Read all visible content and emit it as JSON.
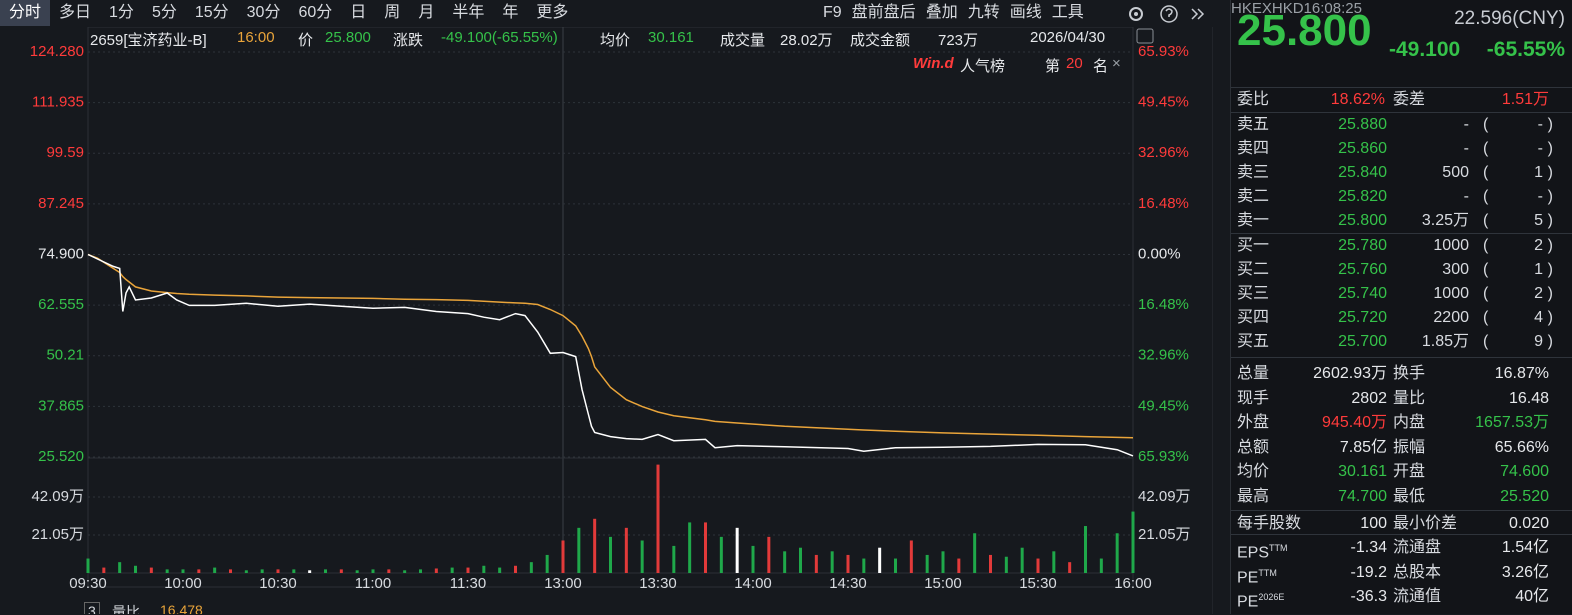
{
  "toolbar": {
    "tabs": [
      "分时",
      "多日",
      "1分",
      "5分",
      "15分",
      "30分",
      "60分",
      "日",
      "周",
      "月",
      "半年",
      "年",
      "更多"
    ],
    "tools": [
      "F9",
      "盘前盘后",
      "叠加",
      "九转",
      "画线",
      "工具"
    ]
  },
  "info": [
    "2659[宝济药业-B]",
    "16:00",
    "价",
    "25.800",
    "涨跌",
    "-49.100(-65.55%)",
    "均价",
    "30.161",
    "成交量",
    "28.02万",
    "成交金额",
    "723万",
    "2026/04/30"
  ],
  "ranking": {
    "brand": "Win.d",
    "name": "人气榜",
    "prefix": "第",
    "rank": "20",
    "suffix": "名",
    "close": "×"
  },
  "chart_data": {
    "type": "line",
    "xlim": [
      0,
      330
    ],
    "xticks": [
      {
        "value": 0,
        "label": "09:30"
      },
      {
        "value": 30,
        "label": "10:00"
      },
      {
        "value": 60,
        "label": "10:30"
      },
      {
        "value": 90,
        "label": "11:00"
      },
      {
        "value": 120,
        "label": "11:30"
      },
      {
        "value": 150,
        "label": "13:00"
      },
      {
        "value": 180,
        "label": "13:30"
      },
      {
        "value": 210,
        "label": "14:00"
      },
      {
        "value": 240,
        "label": "14:30"
      },
      {
        "value": 270,
        "label": "15:00"
      },
      {
        "value": 300,
        "label": "15:30"
      },
      {
        "value": 330,
        "label": "16:00"
      }
    ],
    "ylim": [
      25.52,
      124.28
    ],
    "yticks": [
      {
        "value": 25.52,
        "label": "25.520"
      },
      37.865,
      50.21,
      62.555,
      {
        "value": 74.9,
        "label": "74.900"
      },
      87.245,
      99.59,
      111.935,
      {
        "value": 124.28,
        "label": "124.280"
      }
    ],
    "y2lim": [
      -65.93,
      65.93
    ],
    "y2ticks": [
      {
        "value": -65.93,
        "label": "65.93%"
      },
      {
        "value": -49.45,
        "label": "49.45%"
      },
      {
        "value": -32.96,
        "label": "32.96%"
      },
      {
        "value": -16.48,
        "label": "16.48%"
      },
      {
        "value": 0,
        "label": "0.00%"
      },
      {
        "value": 16.48,
        "label": "16.48%"
      },
      {
        "value": 32.96,
        "label": "32.96%"
      },
      {
        "value": 49.45,
        "label": "49.45%"
      },
      {
        "value": 65.93,
        "label": "65.93%"
      }
    ],
    "grid": true,
    "tick_colors": {
      "up": "#ff3b3b",
      "flat": "#e6e8eb",
      "down": "#35c24a"
    },
    "x": [
      0,
      3,
      8,
      10,
      11,
      12,
      13,
      15,
      20,
      25,
      28,
      32,
      40,
      50,
      60,
      70,
      80,
      90,
      100,
      110,
      120,
      125,
      130,
      135,
      138,
      142,
      146,
      150,
      154,
      156,
      158,
      159,
      160,
      165,
      170,
      175,
      180,
      185,
      195,
      198,
      205,
      220,
      240,
      245,
      255,
      270,
      285,
      300,
      315,
      325,
      330
    ],
    "series": [
      {
        "color": "#ffffff",
        "values": [
          74.9,
          73.8,
          72.0,
          71.5,
          61.0,
          65.5,
          67.0,
          63.8,
          64.3,
          65.5,
          63.8,
          62.5,
          62.5,
          63.0,
          62.3,
          62.8,
          62.3,
          61.8,
          62.0,
          61.0,
          60.5,
          59.6,
          59.0,
          60.5,
          60.0,
          56.0,
          50.8,
          51.0,
          50.0,
          42.0,
          36.0,
          33.0,
          31.5,
          30.5,
          30.0,
          29.8,
          31.0,
          29.5,
          29.8,
          27.8,
          28.3,
          28.0,
          27.6,
          26.9,
          27.8,
          27.9,
          28.1,
          28.6,
          28.5,
          27.3,
          25.8
        ]
      },
      {
        "color": "#e9a43a",
        "values": [
          74.9,
          74.0,
          71.5,
          70.5,
          69.5,
          68.8,
          68.2,
          67.0,
          66.0,
          65.6,
          65.4,
          65.2,
          65.0,
          64.8,
          64.5,
          64.4,
          64.3,
          64.2,
          64.0,
          63.9,
          63.7,
          63.5,
          63.3,
          63.1,
          63.0,
          62.7,
          61.5,
          60.0,
          57.5,
          55.0,
          52.0,
          50.0,
          47.5,
          42.5,
          39.5,
          37.8,
          36.5,
          35.6,
          34.6,
          34.2,
          33.8,
          33.0,
          32.3,
          32.1,
          31.8,
          31.4,
          31.1,
          30.8,
          30.5,
          30.3,
          30.2
        ]
      }
    ],
    "volume": {
      "ylim": [
        0,
        62
      ],
      "yticks": [
        {
          "value": 21.05,
          "label": "21.05万"
        },
        {
          "value": 42.09,
          "label": "42.09万"
        }
      ],
      "x": [
        0,
        5,
        10,
        15,
        20,
        25,
        30,
        35,
        40,
        45,
        50,
        55,
        60,
        65,
        70,
        75,
        80,
        85,
        90,
        95,
        100,
        105,
        110,
        115,
        120,
        125,
        130,
        135,
        140,
        145,
        150,
        155,
        160,
        165,
        170,
        175,
        180,
        185,
        190,
        195,
        200,
        205,
        210,
        215,
        220,
        225,
        230,
        235,
        240,
        245,
        250,
        255,
        260,
        265,
        270,
        275,
        280,
        285,
        290,
        295,
        300,
        305,
        310,
        315,
        320,
        325,
        330
      ],
      "values": [
        8,
        3,
        6,
        4,
        3,
        2,
        2,
        2,
        3,
        2,
        1.5,
        2,
        2,
        2,
        1.5,
        2,
        2,
        1.5,
        2,
        2,
        1.5,
        2,
        2.5,
        3,
        3,
        4,
        3,
        4,
        6,
        10,
        18,
        25,
        30,
        20,
        25,
        18,
        60,
        15,
        28,
        28,
        20,
        25,
        15,
        20,
        12,
        14,
        10,
        12,
        10,
        8,
        14,
        8,
        18,
        10,
        12,
        8,
        22,
        10,
        9,
        14,
        8,
        12,
        6,
        26,
        8,
        22,
        34
      ],
      "colors": [
        "#1fa84a",
        "#e23a3a",
        "#1fa84a",
        "#1fa84a",
        "#e23a3a",
        "#1fa84a",
        "#1fa84a",
        "#e23a3a",
        "#1fa84a",
        "#e23a3a",
        "#1fa84a",
        "#1fa84a",
        "#e23a3a",
        "#1fa84a",
        "#ffffff",
        "#1fa84a",
        "#e23a3a",
        "#1fa84a",
        "#1fa84a",
        "#e23a3a",
        "#1fa84a",
        "#1fa84a",
        "#e23a3a",
        "#1fa84a",
        "#e23a3a",
        "#1fa84a",
        "#1fa84a",
        "#e23a3a",
        "#1fa84a",
        "#1fa84a",
        "#e23a3a",
        "#1fa84a",
        "#e23a3a",
        "#1fa84a",
        "#e23a3a",
        "#1fa84a",
        "#e23a3a",
        "#1fa84a",
        "#1fa84a",
        "#e23a3a",
        "#1fa84a",
        "#ffffff",
        "#1fa84a",
        "#e23a3a",
        "#1fa84a",
        "#1fa84a",
        "#e23a3a",
        "#1fa84a",
        "#e23a3a",
        "#1fa84a",
        "#ffffff",
        "#1fa84a",
        "#e23a3a",
        "#1fa84a",
        "#1fa84a",
        "#e23a3a",
        "#1fa84a",
        "#e23a3a",
        "#1fa84a",
        "#1fa84a",
        "#e23a3a",
        "#1fa84a",
        "#e23a3a",
        "#1fa84a",
        "#1fa84a",
        "#1fa84a",
        "#1fa84a"
      ]
    }
  },
  "panel": {
    "quote": {
      "price": "25.800",
      "cny": "22.596(CNY)",
      "change": "-49.100",
      "change_pct": "-65.55%",
      "exchange": "HKEX",
      "currency": "HKD",
      "time": "16:08:25"
    },
    "ratio": [
      "委比",
      "18.62%",
      "委差",
      "1.51万"
    ],
    "brackets": [
      "(",
      ")"
    ],
    "asks": [
      [
        "卖五",
        "25.880",
        "-",
        "-"
      ],
      [
        "卖四",
        "25.860",
        "-",
        "-"
      ],
      [
        "卖三",
        "25.840",
        "500",
        "1"
      ],
      [
        "卖二",
        "25.820",
        "-",
        "-"
      ],
      [
        "卖一",
        "25.800",
        "3.25万",
        "5"
      ]
    ],
    "bids": [
      [
        "买一",
        "25.780",
        "1000",
        "2"
      ],
      [
        "买二",
        "25.760",
        "300",
        "1"
      ],
      [
        "买三",
        "25.740",
        "1000",
        "2"
      ],
      [
        "买四",
        "25.720",
        "2200",
        "4"
      ],
      [
        "买五",
        "25.700",
        "1.85万",
        "9"
      ]
    ],
    "stats": [
      {
        "l1": "总量",
        "v1": "2602.93万",
        "l2": "换手",
        "v2": "16.87%"
      },
      {
        "l1": "现手",
        "v1": "2802",
        "l2": "量比",
        "v2": "16.48"
      },
      {
        "l1": "外盘",
        "v1": "945.40万",
        "c1": "#ff3b3b",
        "l2": "内盘",
        "v2": "1657.53万",
        "c2": "#35c24a"
      },
      {
        "l1": "总额",
        "v1": "7.85亿",
        "l2": "振幅",
        "v2": "65.66%"
      },
      {
        "l1": "均价",
        "v1": "30.161",
        "c1": "#35c24a",
        "l2": "开盘",
        "v2": "74.600",
        "c2": "#35c24a"
      },
      {
        "l1": "最高",
        "v1": "74.700",
        "c1": "#35c24a",
        "l2": "最低",
        "v2": "25.520",
        "c2": "#35c24a"
      },
      {
        "l1": "每手股数",
        "v1": "100",
        "l2": "最小价差",
        "v2": "0.020"
      },
      {
        "l1": "EPS",
        "s1": "TTM",
        "v1": "-1.34",
        "l2": "流通盘",
        "v2": "1.54亿"
      },
      {
        "l1": "PE",
        "s1": "TTM",
        "v1": "-19.2",
        "l2": "总股本",
        "v2": "3.26亿"
      },
      {
        "l1": "PE",
        "s1": "2026E",
        "v1": "-36.3",
        "l2": "流通值",
        "v2": "40亿"
      }
    ]
  },
  "footer": [
    "3",
    "量比",
    "16.478"
  ]
}
